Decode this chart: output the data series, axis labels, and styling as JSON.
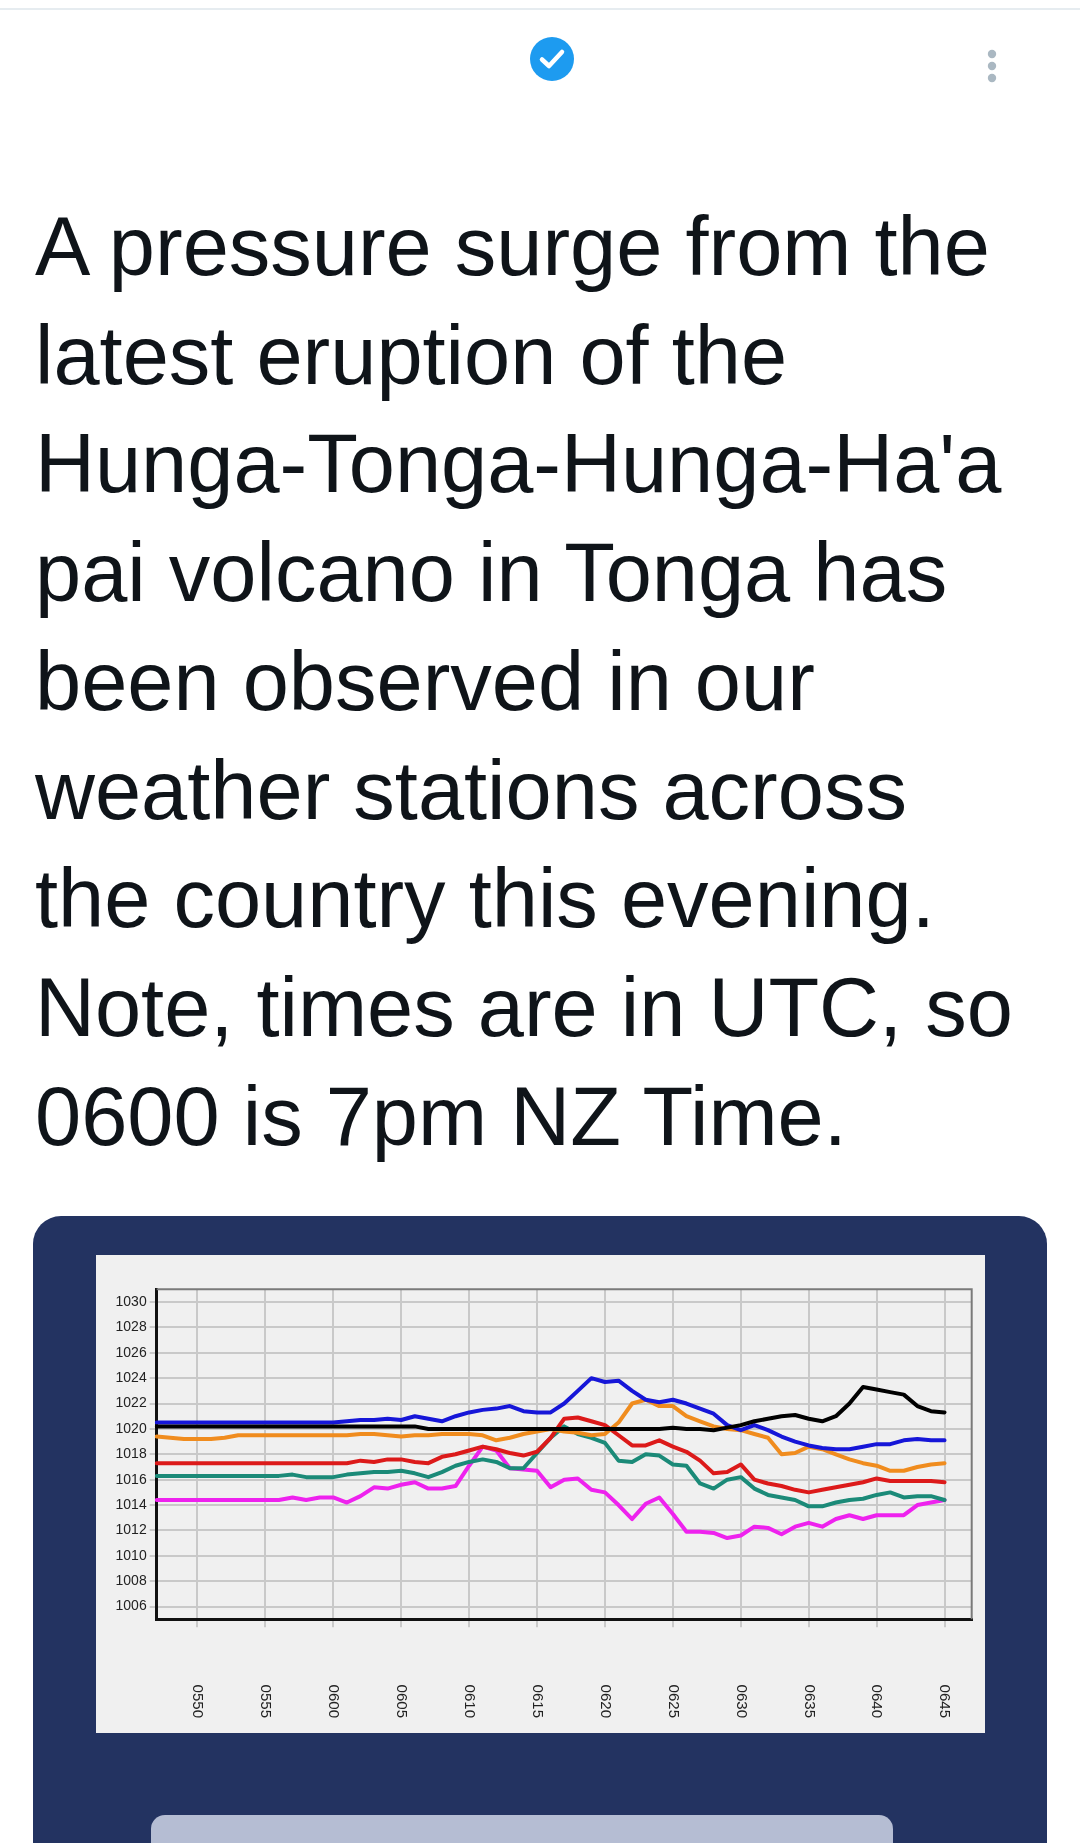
{
  "chart_data": {
    "type": "line",
    "title": "A pressure surge from the\nlatest eruption of the\nHunga-Tonga-Hunga-Ha'a\npai volcano in Tonga has\nbeen observed in our\nweather stations across\nthe country this evening.\nNote, times are in UTC, so\n0600 is 7pm NZ Time.",
    "categories": [
      null,
      null,
      null,
      "0550",
      null,
      null,
      null,
      null,
      "0555",
      null,
      null,
      null,
      null,
      "0600",
      null,
      null,
      null,
      null,
      "0605",
      null,
      null,
      null,
      null,
      "0610",
      null,
      null,
      null,
      null,
      "0615",
      null,
      null,
      null,
      null,
      "0620",
      null,
      null,
      null,
      null,
      "0625",
      null,
      null,
      null,
      null,
      "0630",
      null,
      null,
      null,
      null,
      "0635",
      null,
      null,
      null,
      null,
      "0640",
      null,
      null,
      null,
      null,
      "0645",
      null,
      null
    ],
    "series": [
      {
        "color": "#000000",
        "values": [
          1020.2,
          1020.2,
          1020.2,
          1020.2,
          1020.2,
          1020.2,
          1020.2,
          1020.2,
          1020.2,
          1020.2,
          1020.2,
          1020.2,
          1020.2,
          1020.2,
          1020.2,
          1020.2,
          1020.2,
          1020.2,
          1020.2,
          1020.2,
          1020.0,
          1020.0,
          1020.0,
          1020.0,
          1020.0,
          1020.0,
          1020.0,
          1020.0,
          1020.0,
          1020.0,
          1020.0,
          1020.0,
          1020.0,
          1020.0,
          1020.0,
          1020.0,
          1020.0,
          1020.0,
          1020.1,
          1020.0,
          1020.0,
          1019.9,
          1020.1,
          1020.3,
          1020.6,
          1020.8,
          1021.0,
          1021.1,
          1020.8,
          1020.6,
          1021.0,
          1022.0,
          1023.3,
          1023.1,
          1022.9,
          1022.7,
          1021.8,
          1021.4,
          1021.3,
          null,
          null
        ]
      },
      {
        "color": "#1616d8",
        "values": [
          1020.5,
          1020.5,
          1020.5,
          1020.5,
          1020.5,
          1020.5,
          1020.5,
          1020.5,
          1020.5,
          1020.5,
          1020.5,
          1020.5,
          1020.5,
          1020.5,
          1020.6,
          1020.7,
          1020.7,
          1020.8,
          1020.7,
          1021.0,
          1020.8,
          1020.6,
          1021.0,
          1021.3,
          1021.5,
          1021.6,
          1021.8,
          1021.4,
          1021.3,
          1021.3,
          1022.0,
          1023.0,
          1024.0,
          1023.7,
          1023.8,
          1023.0,
          1022.3,
          1022.1,
          1022.3,
          1022.0,
          1021.6,
          1021.2,
          1020.3,
          1019.9,
          1020.3,
          1019.9,
          1019.4,
          1019.0,
          1018.7,
          1018.5,
          1018.4,
          1018.4,
          1018.6,
          1018.8,
          1018.8,
          1019.1,
          1019.2,
          1019.1,
          1019.1,
          null,
          null
        ]
      },
      {
        "color": "#f08c1e",
        "values": [
          1019.4,
          1019.3,
          1019.2,
          1019.2,
          1019.2,
          1019.3,
          1019.5,
          1019.5,
          1019.5,
          1019.5,
          1019.5,
          1019.5,
          1019.5,
          1019.5,
          1019.5,
          1019.6,
          1019.6,
          1019.5,
          1019.4,
          1019.5,
          1019.5,
          1019.6,
          1019.6,
          1019.6,
          1019.5,
          1019.1,
          1019.3,
          1019.6,
          1019.8,
          1020.0,
          1019.8,
          1019.7,
          1019.5,
          1019.6,
          1020.5,
          1022.0,
          1022.3,
          1021.8,
          1021.8,
          1021.0,
          1020.6,
          1020.2,
          1020.0,
          1019.9,
          1019.6,
          1019.3,
          1018.0,
          1018.1,
          1018.6,
          1018.4,
          1018.0,
          1017.6,
          1017.3,
          1017.1,
          1016.7,
          1016.7,
          1017.0,
          1017.2,
          1017.3,
          null,
          null
        ]
      },
      {
        "color": "#dc1a1a",
        "values": [
          1017.3,
          1017.3,
          1017.3,
          1017.3,
          1017.3,
          1017.3,
          1017.3,
          1017.3,
          1017.3,
          1017.3,
          1017.3,
          1017.3,
          1017.3,
          1017.3,
          1017.3,
          1017.5,
          1017.4,
          1017.6,
          1017.6,
          1017.4,
          1017.3,
          1017.8,
          1018.0,
          1018.3,
          1018.6,
          1018.4,
          1018.1,
          1017.9,
          1018.2,
          1019.3,
          1020.8,
          1020.9,
          1020.6,
          1020.3,
          1019.5,
          1018.7,
          1018.7,
          1019.1,
          1018.6,
          1018.2,
          1017.5,
          1016.5,
          1016.6,
          1017.2,
          1016.0,
          1015.7,
          1015.5,
          1015.2,
          1015.0,
          1015.2,
          1015.4,
          1015.6,
          1015.8,
          1016.1,
          1015.9,
          1015.9,
          1015.9,
          1015.9,
          1015.8,
          null,
          null
        ]
      },
      {
        "color": "#1b8a78",
        "values": [
          1016.3,
          1016.3,
          1016.3,
          1016.3,
          1016.3,
          1016.3,
          1016.3,
          1016.3,
          1016.3,
          1016.3,
          1016.4,
          1016.2,
          1016.2,
          1016.2,
          1016.4,
          1016.5,
          1016.6,
          1016.6,
          1016.7,
          1016.5,
          1016.2,
          1016.6,
          1017.1,
          1017.4,
          1017.6,
          1017.4,
          1016.9,
          1016.9,
          1018.1,
          1019.3,
          1020.2,
          1019.6,
          1019.3,
          1018.9,
          1017.5,
          1017.4,
          1018.0,
          1017.9,
          1017.2,
          1017.1,
          1015.7,
          1015.3,
          1016.0,
          1016.2,
          1015.3,
          1014.8,
          1014.6,
          1014.4,
          1013.9,
          1013.9,
          1014.2,
          1014.4,
          1014.5,
          1014.8,
          1015.0,
          1014.6,
          1014.7,
          1014.7,
          1014.4,
          null,
          null
        ]
      },
      {
        "color": "#ee22ee",
        "values": [
          1014.4,
          1014.4,
          1014.4,
          1014.4,
          1014.4,
          1014.4,
          1014.4,
          1014.4,
          1014.4,
          1014.4,
          1014.6,
          1014.4,
          1014.6,
          1014.6,
          1014.2,
          1014.7,
          1015.4,
          1015.3,
          1015.6,
          1015.8,
          1015.3,
          1015.3,
          1015.5,
          1017.1,
          1018.6,
          1018.3,
          1016.9,
          1016.8,
          1016.7,
          1015.4,
          1016.0,
          1016.1,
          1015.2,
          1015.0,
          1014.0,
          1012.9,
          1014.1,
          1014.6,
          1013.3,
          1011.9,
          1011.9,
          1011.8,
          1011.4,
          1011.6,
          1012.3,
          1012.2,
          1011.7,
          1012.3,
          1012.6,
          1012.3,
          1012.9,
          1013.2,
          1012.9,
          1013.2,
          1013.2,
          1013.2,
          1014.0,
          1014.2,
          1014.4,
          null,
          null
        ]
      }
    ],
    "ylim": [
      1005,
      1031
    ],
    "yticks": [
      1006,
      1008,
      1010,
      1012,
      1014,
      1016,
      1018,
      1020,
      1022,
      1024,
      1026,
      1028,
      1030
    ],
    "grid": true,
    "marker": "none",
    "line_style": "solid"
  }
}
